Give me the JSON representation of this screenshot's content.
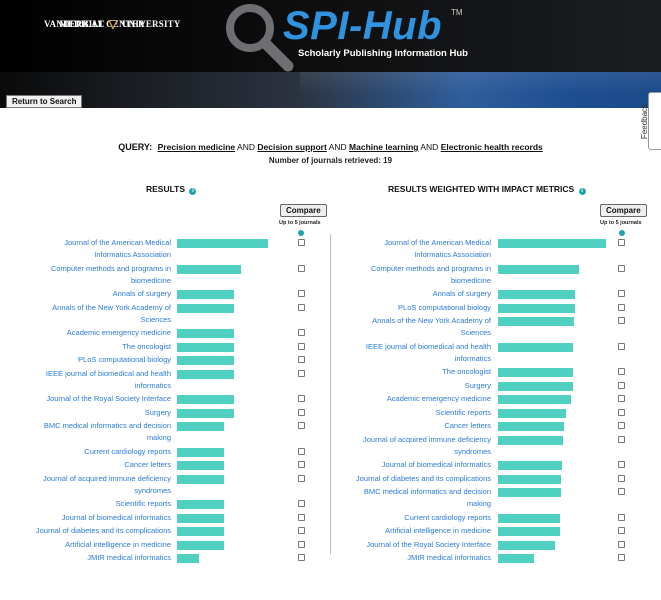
{
  "header": {
    "vu_line1_left": "VANDERBILT",
    "vu_line1_right": "UNIVERSITY",
    "vu_line2": "MEDICAL CENTER",
    "app_title": "SPI-Hub",
    "trademark": "TM",
    "subtitle": "Scholarly Publishing Information Hub",
    "return_label": "Return to Search",
    "feedback_label": "Feedback"
  },
  "query": {
    "label": "QUERY:",
    "terms": [
      "Precision medicine",
      "Decision support",
      "Machine learning",
      "Electronic health records"
    ],
    "operator": "AND",
    "count_text": "Number of journals retrieved: 19"
  },
  "results": {
    "title": "RESULTS",
    "compare_label": "Compare",
    "upto_label": "Up to 5 journals",
    "items": [
      {
        "name": "Journal of the American Medical Informatics Association",
        "lines": [
          "Journal of the American Medical",
          "Informatics Association"
        ],
        "score": 0.91
      },
      {
        "name": "Computer methods and programs in biomedicine",
        "lines": [
          "Computer methods and programs in",
          "biomedicine"
        ],
        "score": 0.64
      },
      {
        "name": "Annals of surgery",
        "lines": [
          "Annals of surgery"
        ],
        "score": 0.57
      },
      {
        "name": "Annals of the New York Academy of Sciences",
        "lines": [
          "Annals of the New York Academy of",
          "Sciences"
        ],
        "score": 0.57
      },
      {
        "name": "Academic emergency medicine",
        "lines": [
          "Academic emergency medicine"
        ],
        "score": 0.57
      },
      {
        "name": "The oncologist",
        "lines": [
          "The oncologist"
        ],
        "score": 0.57
      },
      {
        "name": "PLoS computational biology",
        "lines": [
          "PLoS computational biology"
        ],
        "score": 0.57
      },
      {
        "name": "IEEE journal of biomedical and health informatics",
        "lines": [
          "IEEE journal of biomedical and health",
          "informatics"
        ],
        "score": 0.57
      },
      {
        "name": "Journal of the Royal Society Interface",
        "lines": [
          "Journal of the Royal Society Interface"
        ],
        "score": 0.57
      },
      {
        "name": "Surgery",
        "lines": [
          "Surgery"
        ],
        "score": 0.57
      },
      {
        "name": "BMC medical informatics and decision making",
        "lines": [
          "BMC medical informatics and decision",
          "making"
        ],
        "score": 0.47
      },
      {
        "name": "Current cardiology reports",
        "lines": [
          "Current cardiology reports"
        ],
        "score": 0.47
      },
      {
        "name": "Cancer letters",
        "lines": [
          "Cancer letters"
        ],
        "score": 0.47
      },
      {
        "name": "Journal of acquired immune deficiency syndromes",
        "lines": [
          "Journal of acquired immune deficiency",
          "syndromes"
        ],
        "score": 0.47
      },
      {
        "name": "Scientific reports",
        "lines": [
          "Scientific reports"
        ],
        "score": 0.47
      },
      {
        "name": "Journal of biomedical informatics",
        "lines": [
          "Journal of biomedical informatics"
        ],
        "score": 0.47
      },
      {
        "name": "Journal of diabetes and its complications",
        "lines": [
          "Journal of diabetes and its complications"
        ],
        "score": 0.47
      },
      {
        "name": "Artificial intelligence in medicine",
        "lines": [
          "Artificial intelligence in medicine"
        ],
        "score": 0.47
      },
      {
        "name": "JMIR medical informatics",
        "lines": [
          "JMIR medical informatics"
        ],
        "score": 0.22
      }
    ]
  },
  "weighted": {
    "title": "RESULTS WEIGHTED WITH IMPACT METRICS",
    "compare_label": "Compare",
    "upto_label": "Up to 5 journals",
    "items": [
      {
        "name": "Journal of the American Medical Informatics Association",
        "lines": [
          "Journal of the American Medical",
          "Informatics Association"
        ],
        "score": 1.0
      },
      {
        "name": "Computer methods and programs in biomedicine",
        "lines": [
          "Computer methods and programs in",
          "biomedicine"
        ],
        "score": 0.75
      },
      {
        "name": "Annals of surgery",
        "lines": [
          "Annals of surgery"
        ],
        "score": 0.71
      },
      {
        "name": "PLoS computational biology",
        "lines": [
          "PLoS computational biology"
        ],
        "score": 0.71
      },
      {
        "name": "Annals of the New York Academy of Sciences",
        "lines": [
          "Annals of the New York Academy of",
          "Sciences"
        ],
        "score": 0.7
      },
      {
        "name": "IEEE journal of biomedical and health informatics",
        "lines": [
          "IEEE journal of biomedical and health",
          "informatics"
        ],
        "score": 0.69
      },
      {
        "name": "The oncologist",
        "lines": [
          "The oncologist"
        ],
        "score": 0.69
      },
      {
        "name": "Surgery",
        "lines": [
          "Surgery"
        ],
        "score": 0.69
      },
      {
        "name": "Academic emergency medicine",
        "lines": [
          "Academic emergency medicine"
        ],
        "score": 0.68
      },
      {
        "name": "Scientific reports",
        "lines": [
          "Scientific reports"
        ],
        "score": 0.63
      },
      {
        "name": "Cancer letters",
        "lines": [
          "Cancer letters"
        ],
        "score": 0.61
      },
      {
        "name": "Journal of acquired immune deficiency syndromes",
        "lines": [
          "Journal of acquired immune deficiency",
          "syndromes"
        ],
        "score": 0.6
      },
      {
        "name": "Journal of biomedical informatics",
        "lines": [
          "Journal of biomedical informatics"
        ],
        "score": 0.59
      },
      {
        "name": "Journal of diabetes and its complications",
        "lines": [
          "Journal of diabetes and its complications"
        ],
        "score": 0.58
      },
      {
        "name": "BMC medical informatics and decision making",
        "lines": [
          "BMC medical informatics and decision",
          "making"
        ],
        "score": 0.58
      },
      {
        "name": "Current cardiology reports",
        "lines": [
          "Current cardiology reports"
        ],
        "score": 0.57
      },
      {
        "name": "Artificial intelligence in medicine",
        "lines": [
          "Artificial intelligence in medicine"
        ],
        "score": 0.57
      },
      {
        "name": "Journal of the Royal Society Interface",
        "lines": [
          "Journal of the Royal Society Interface"
        ],
        "score": 0.53
      },
      {
        "name": "JMIR medical informatics",
        "lines": [
          "JMIR medical informatics"
        ],
        "score": 0.33
      }
    ]
  },
  "colors": {
    "bar": "#4fd0c0",
    "link": "#2a7bd6",
    "info": "#1fa5a5",
    "brand": "#2f93e0"
  },
  "icons": {
    "logo": "magnifier-icon",
    "info": "info-icon",
    "university_mark": "vu-shield-icon"
  }
}
